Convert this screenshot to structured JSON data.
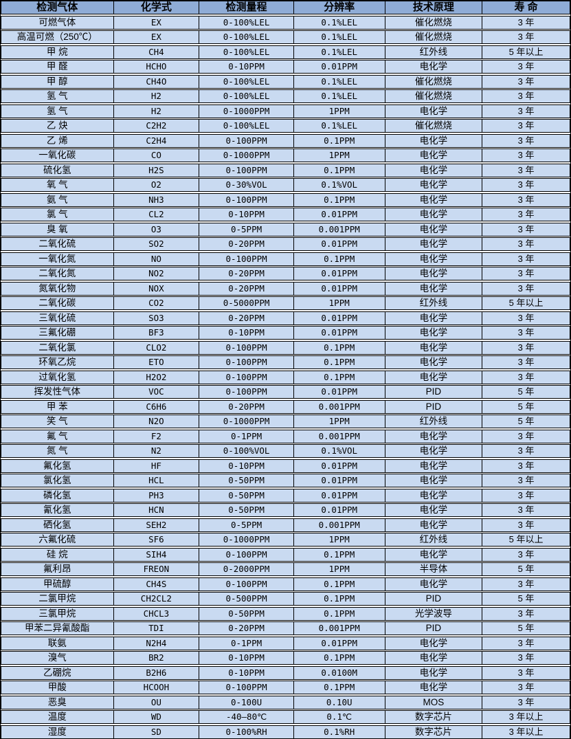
{
  "colors": {
    "header_bg": "#8FACD6",
    "row_bg": "#C9DAF1",
    "border": "#000000",
    "gap": "#FFFFFF",
    "text": "#000000"
  },
  "table": {
    "columns": [
      "检测气体",
      "化学式",
      "检测量程",
      "分辨率",
      "技术原理",
      "寿 命"
    ],
    "rows": [
      [
        "可燃气体",
        "EX",
        "0-100%LEL",
        "0.1%LEL",
        "催化燃烧",
        "3 年"
      ],
      [
        "高温可燃（250℃）",
        "EX",
        "0-100%LEL",
        "0.1%LEL",
        "催化燃烧",
        "3 年"
      ],
      [
        "甲 烷",
        "CH4",
        "0-100%LEL",
        "0.1%LEL",
        "红外线",
        "5 年以上"
      ],
      [
        "甲 醛",
        "HCHO",
        "0-10PPM",
        "0.01PPM",
        "电化学",
        "3 年"
      ],
      [
        "甲 醇",
        "CH4O",
        "0-100%LEL",
        "0.1%LEL",
        "催化燃烧",
        "3 年"
      ],
      [
        "氢 气",
        "H2",
        "0-100%LEL",
        "0.1%LEL",
        "催化燃烧",
        "3 年"
      ],
      [
        "氢 气",
        "H2",
        "0-1000PPM",
        "1PPM",
        "电化学",
        "3 年"
      ],
      [
        "乙 炔",
        "C2H2",
        "0-100%LEL",
        "0.1%LEL",
        "催化燃烧",
        "3 年"
      ],
      [
        "乙 烯",
        "C2H4",
        "0-100PPM",
        "0.1PPM",
        "电化学",
        "3 年"
      ],
      [
        "一氧化碳",
        "CO",
        "0-1000PPM",
        "1PPM",
        "电化学",
        "3 年"
      ],
      [
        "硫化氢",
        "H2S",
        "0-100PPM",
        "0.1PPM",
        "电化学",
        "3 年"
      ],
      [
        "氧 气",
        "O2",
        "0-30%VOL",
        "0.1%VOL",
        "电化学",
        "3 年"
      ],
      [
        "氨 气",
        "NH3",
        "0-100PPM",
        "0.1PPM",
        "电化学",
        "3 年"
      ],
      [
        "氯 气",
        "CL2",
        "0-10PPM",
        "0.01PPM",
        "电化学",
        "3 年"
      ],
      [
        "臭 氧",
        "O3",
        "0-5PPM",
        "0.001PPM",
        "电化学",
        "3 年"
      ],
      [
        "二氧化硫",
        "SO2",
        "0-20PPM",
        "0.01PPM",
        "电化学",
        "3 年"
      ],
      [
        "一氧化氮",
        "NO",
        "0-100PPM",
        "0.1PPM",
        "电化学",
        "3 年"
      ],
      [
        "二氧化氮",
        "NO2",
        "0-20PPM",
        "0.01PPM",
        "电化学",
        "3 年"
      ],
      [
        "氮氧化物",
        "NOX",
        "0-20PPM",
        "0.01PPM",
        "电化学",
        "3 年"
      ],
      [
        "二氧化碳",
        "CO2",
        "0-5000PPM",
        "1PPM",
        "红外线",
        "5 年以上"
      ],
      [
        "三氧化硫",
        "SO3",
        "0-20PPM",
        "0.01PPM",
        "电化学",
        "3 年"
      ],
      [
        "三氟化硼",
        "BF3",
        "0-10PPM",
        "0.01PPM",
        "电化学",
        "3 年"
      ],
      [
        "二氧化氯",
        "CLO2",
        "0-100PPM",
        "0.1PPM",
        "电化学",
        "3 年"
      ],
      [
        "环氧乙烷",
        "ETO",
        "0-100PPM",
        "0.1PPM",
        "电化学",
        "3 年"
      ],
      [
        "过氧化氢",
        "H2O2",
        "0-100PPM",
        "0.1PPM",
        "电化学",
        "3 年"
      ],
      [
        "挥发性气体",
        "VOC",
        "0-100PPM",
        "0.01PPM",
        "PID",
        "5 年"
      ],
      [
        "甲 苯",
        "C6H6",
        "0-20PPM",
        "0.001PPM",
        "PID",
        "5 年"
      ],
      [
        "笑 气",
        "N2O",
        "0-1000PPM",
        "1PPM",
        "红外线",
        "5 年"
      ],
      [
        "氟 气",
        "F2",
        "0-1PPM",
        "0.001PPM",
        "电化学",
        "3 年"
      ],
      [
        "氮 气",
        "N2",
        "0-100%VOL",
        "0.1%VOL",
        "电化学",
        "3 年"
      ],
      [
        "氟化氢",
        "HF",
        "0-10PPM",
        "0.01PPM",
        "电化学",
        "3 年"
      ],
      [
        "氯化氢",
        "HCL",
        "0-50PPM",
        "0.01PPM",
        "电化学",
        "3 年"
      ],
      [
        "磷化氢",
        "PH3",
        "0-50PPM",
        "0.01PPM",
        "电化学",
        "3 年"
      ],
      [
        "氰化氢",
        "HCN",
        "0-50PPM",
        "0.01PPM",
        "电化学",
        "3 年"
      ],
      [
        "硒化氢",
        "SEH2",
        "0-5PPM",
        "0.001PPM",
        "电化学",
        "3 年"
      ],
      [
        "六氟化硫",
        "SF6",
        "0-1000PPM",
        "1PPM",
        "红外线",
        "5 年以上"
      ],
      [
        "硅 烷",
        "SIH4",
        "0-100PPM",
        "0.1PPM",
        "电化学",
        "3 年"
      ],
      [
        "氟利昂",
        "FREON",
        "0-2000PPM",
        "1PPM",
        "半导体",
        "5 年"
      ],
      [
        "甲硫醇",
        "CH4S",
        "0-100PPM",
        "0.1PPM",
        "电化学",
        "3 年"
      ],
      [
        "二氯甲烷",
        "CH2CL2",
        "0-500PPM",
        "0.1PPM",
        "PID",
        "5 年"
      ],
      [
        "三氯甲烷",
        "CHCL3",
        "0-50PPM",
        "0.1PPM",
        "光学波导",
        "3 年"
      ],
      [
        "甲苯二异氰酸酯",
        "TDI",
        "0-20PPM",
        "0.001PPM",
        "PID",
        "5 年"
      ],
      [
        "联氨",
        "N2H4",
        "0-1PPM",
        "0.01PPM",
        "电化学",
        "3 年"
      ],
      [
        "溴气",
        "BR2",
        "0-10PPM",
        "0.1PPM",
        "电化学",
        "3 年"
      ],
      [
        "乙硼烷",
        "B2H6",
        "0-10PPM",
        "0.0100M",
        "电化学",
        "3 年"
      ],
      [
        "甲酸",
        "HCOOH",
        "0-100PPM",
        "0.1PPM",
        "电化学",
        "3 年"
      ],
      [
        "恶臭",
        "OU",
        "0-100U",
        "0.10U",
        "MOS",
        "3 年"
      ],
      [
        "温度",
        "WD",
        "-40—80℃",
        "0.1℃",
        "数字芯片",
        "3 年以上"
      ],
      [
        "湿度",
        "SD",
        "0-100%RH",
        "0.1%RH",
        "数字芯片",
        "3 年以上"
      ]
    ]
  }
}
